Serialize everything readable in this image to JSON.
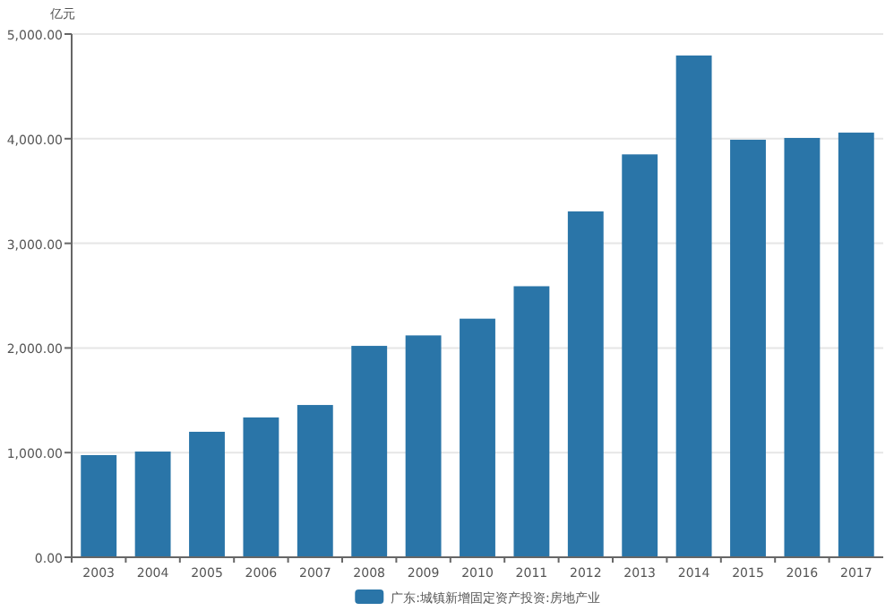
{
  "chart_data": {
    "type": "bar",
    "ylabel": "亿元",
    "categories": [
      "2003",
      "2004",
      "2005",
      "2006",
      "2007",
      "2008",
      "2009",
      "2010",
      "2011",
      "2012",
      "2013",
      "2014",
      "2015",
      "2016",
      "2017"
    ],
    "series": [
      {
        "name": "广东:城镇新增固定资产投资:房地产业",
        "color": "#2a75a8",
        "values": [
          976,
          1010,
          1199,
          1336,
          1455,
          2020,
          2120,
          2280,
          2590,
          3305,
          3850,
          4795,
          3990,
          4007,
          4058
        ]
      }
    ],
    "ylim": [
      0,
      5000
    ],
    "yticks": [
      {
        "value": 0,
        "label": "0.00"
      },
      {
        "value": 1000,
        "label": "1,000.00"
      },
      {
        "value": 2000,
        "label": "2,000.00"
      },
      {
        "value": 3000,
        "label": "3,000.00"
      },
      {
        "value": 4000,
        "label": "4,000.00"
      },
      {
        "value": 5000,
        "label": "5,000.00"
      }
    ],
    "grid": "y",
    "legend": "bottom"
  }
}
